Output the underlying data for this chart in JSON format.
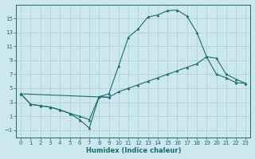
{
  "xlabel": "Humidex (Indice chaleur)",
  "bg_color": "#cce8ee",
  "line_color": "#1a6b6b",
  "grid_color": "#aacdd4",
  "xlim": [
    -0.5,
    23.5
  ],
  "ylim": [
    -2.0,
    17.0
  ],
  "xticks": [
    0,
    1,
    2,
    3,
    4,
    5,
    6,
    7,
    8,
    9,
    10,
    11,
    12,
    13,
    14,
    15,
    16,
    17,
    18,
    19,
    20,
    21,
    22,
    23
  ],
  "yticks": [
    -1,
    1,
    3,
    5,
    7,
    9,
    11,
    13,
    15
  ],
  "line1_x": [
    0,
    1,
    2,
    3,
    4,
    5,
    6,
    7,
    8,
    9,
    10,
    11,
    12,
    13,
    14,
    15,
    16,
    17,
    18,
    19,
    20,
    21,
    22,
    23
  ],
  "line1_y": [
    4.2,
    2.7,
    2.5,
    2.3,
    1.9,
    1.4,
    1.0,
    0.5,
    3.8,
    4.2,
    8.2,
    12.3,
    13.5,
    15.2,
    15.5,
    16.1,
    16.2,
    15.3,
    13.0,
    9.5,
    7.0,
    6.5,
    5.8,
    5.7
  ],
  "line2_x": [
    0,
    1,
    2,
    3,
    4,
    5,
    6,
    7,
    8,
    9
  ],
  "line2_y": [
    4.2,
    2.7,
    2.5,
    2.3,
    1.9,
    1.4,
    0.5,
    -0.7,
    3.8,
    3.7
  ],
  "line3_x": [
    0,
    9,
    10,
    11,
    12,
    13,
    14,
    15,
    16,
    17,
    18,
    19,
    20,
    21,
    22,
    23
  ],
  "line3_y": [
    4.2,
    3.7,
    4.5,
    5.0,
    5.5,
    6.0,
    6.5,
    7.0,
    7.5,
    8.0,
    8.5,
    9.5,
    9.3,
    7.0,
    6.3,
    5.7
  ]
}
